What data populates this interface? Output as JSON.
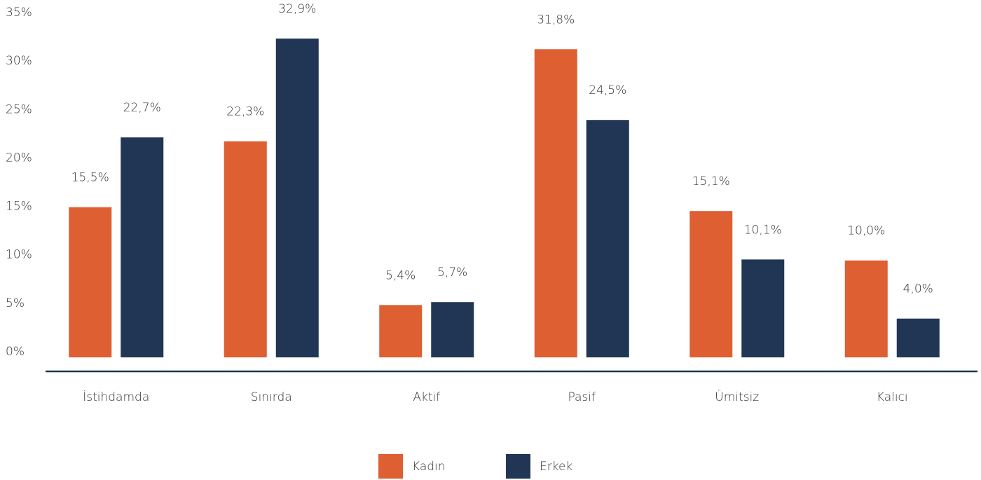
{
  "chart_data": {
    "type": "bar",
    "categories": [
      "İstihdamda",
      "Sınırda",
      "Aktif",
      "Pasif",
      "Ümitsiz",
      "Kalıcı"
    ],
    "series": [
      {
        "name": "Kadın",
        "color": "#dd5f32",
        "values": [
          15.5,
          22.3,
          5.4,
          31.8,
          15.1,
          10.0
        ],
        "value_labels": [
          "15,5%",
          "22,3%",
          "5,4%",
          "31,8%",
          "15,1%",
          "10,0%"
        ]
      },
      {
        "name": "Erkek",
        "color": "#213654",
        "values": [
          22.7,
          32.9,
          5.7,
          24.5,
          10.1,
          4.0
        ],
        "value_labels": [
          "22,7%",
          "32,9%",
          "5,7%",
          "24,5%",
          "10,1%",
          "4,0%"
        ]
      }
    ],
    "ylim": [
      0,
      35
    ],
    "yticks": [
      {
        "value": 0,
        "label": "0%"
      },
      {
        "value": 5,
        "label": "5%"
      },
      {
        "value": 10,
        "label": "10%"
      },
      {
        "value": 15,
        "label": "15%"
      },
      {
        "value": 20,
        "label": "20%"
      },
      {
        "value": 25,
        "label": "25%"
      },
      {
        "value": 30,
        "label": "30%"
      },
      {
        "value": 35,
        "label": "35%"
      }
    ],
    "grid": false
  }
}
